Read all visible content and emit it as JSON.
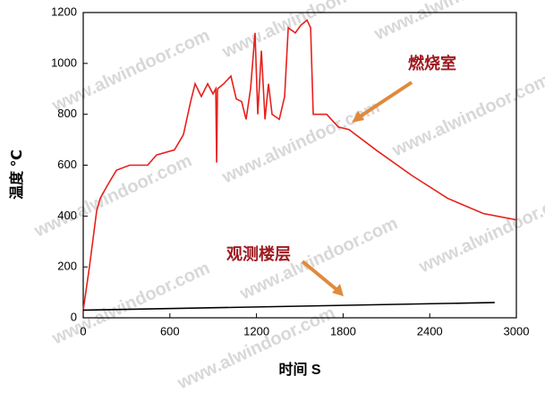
{
  "chart_data": {
    "type": "line",
    "watermark": "www.alwindoor.com",
    "xlabel": "时间 S",
    "ylabel": "温度 ℃",
    "xlim": [
      0,
      3000
    ],
    "xticks": [
      0,
      600,
      1200,
      1800,
      2400,
      3000
    ],
    "ylim": [
      0,
      1200
    ],
    "yticks": [
      0,
      200,
      400,
      600,
      800,
      1000,
      1200
    ],
    "series": [
      {
        "name": "燃烧室",
        "color": "#e8201c",
        "x": [
          0,
          43,
          93,
          118,
          167,
          230,
          322,
          446,
          508,
          632,
          694,
          744,
          775,
          818,
          862,
          899,
          918,
          924,
          930,
          973,
          1023,
          1060,
          1097,
          1128,
          1159,
          1190,
          1209,
          1234,
          1259,
          1283,
          1308,
          1358,
          1395,
          1420,
          1469,
          1507,
          1550,
          1575,
          1593,
          1686,
          1767,
          1841,
          2027,
          2275,
          2523,
          2771,
          3000
        ],
        "values": [
          30,
          200,
          420,
          470,
          520,
          580,
          600,
          600,
          640,
          660,
          720,
          850,
          920,
          870,
          920,
          880,
          900,
          610,
          900,
          920,
          950,
          860,
          850,
          780,
          900,
          1120,
          800,
          1050,
          780,
          920,
          800,
          780,
          870,
          1140,
          1120,
          1150,
          1170,
          1140,
          800,
          800,
          750,
          740,
          660,
          560,
          470,
          410,
          385
        ]
      },
      {
        "name": "观测楼层",
        "color": "#000000",
        "x": [
          0,
          2850
        ],
        "values": [
          30,
          60
        ]
      }
    ]
  }
}
